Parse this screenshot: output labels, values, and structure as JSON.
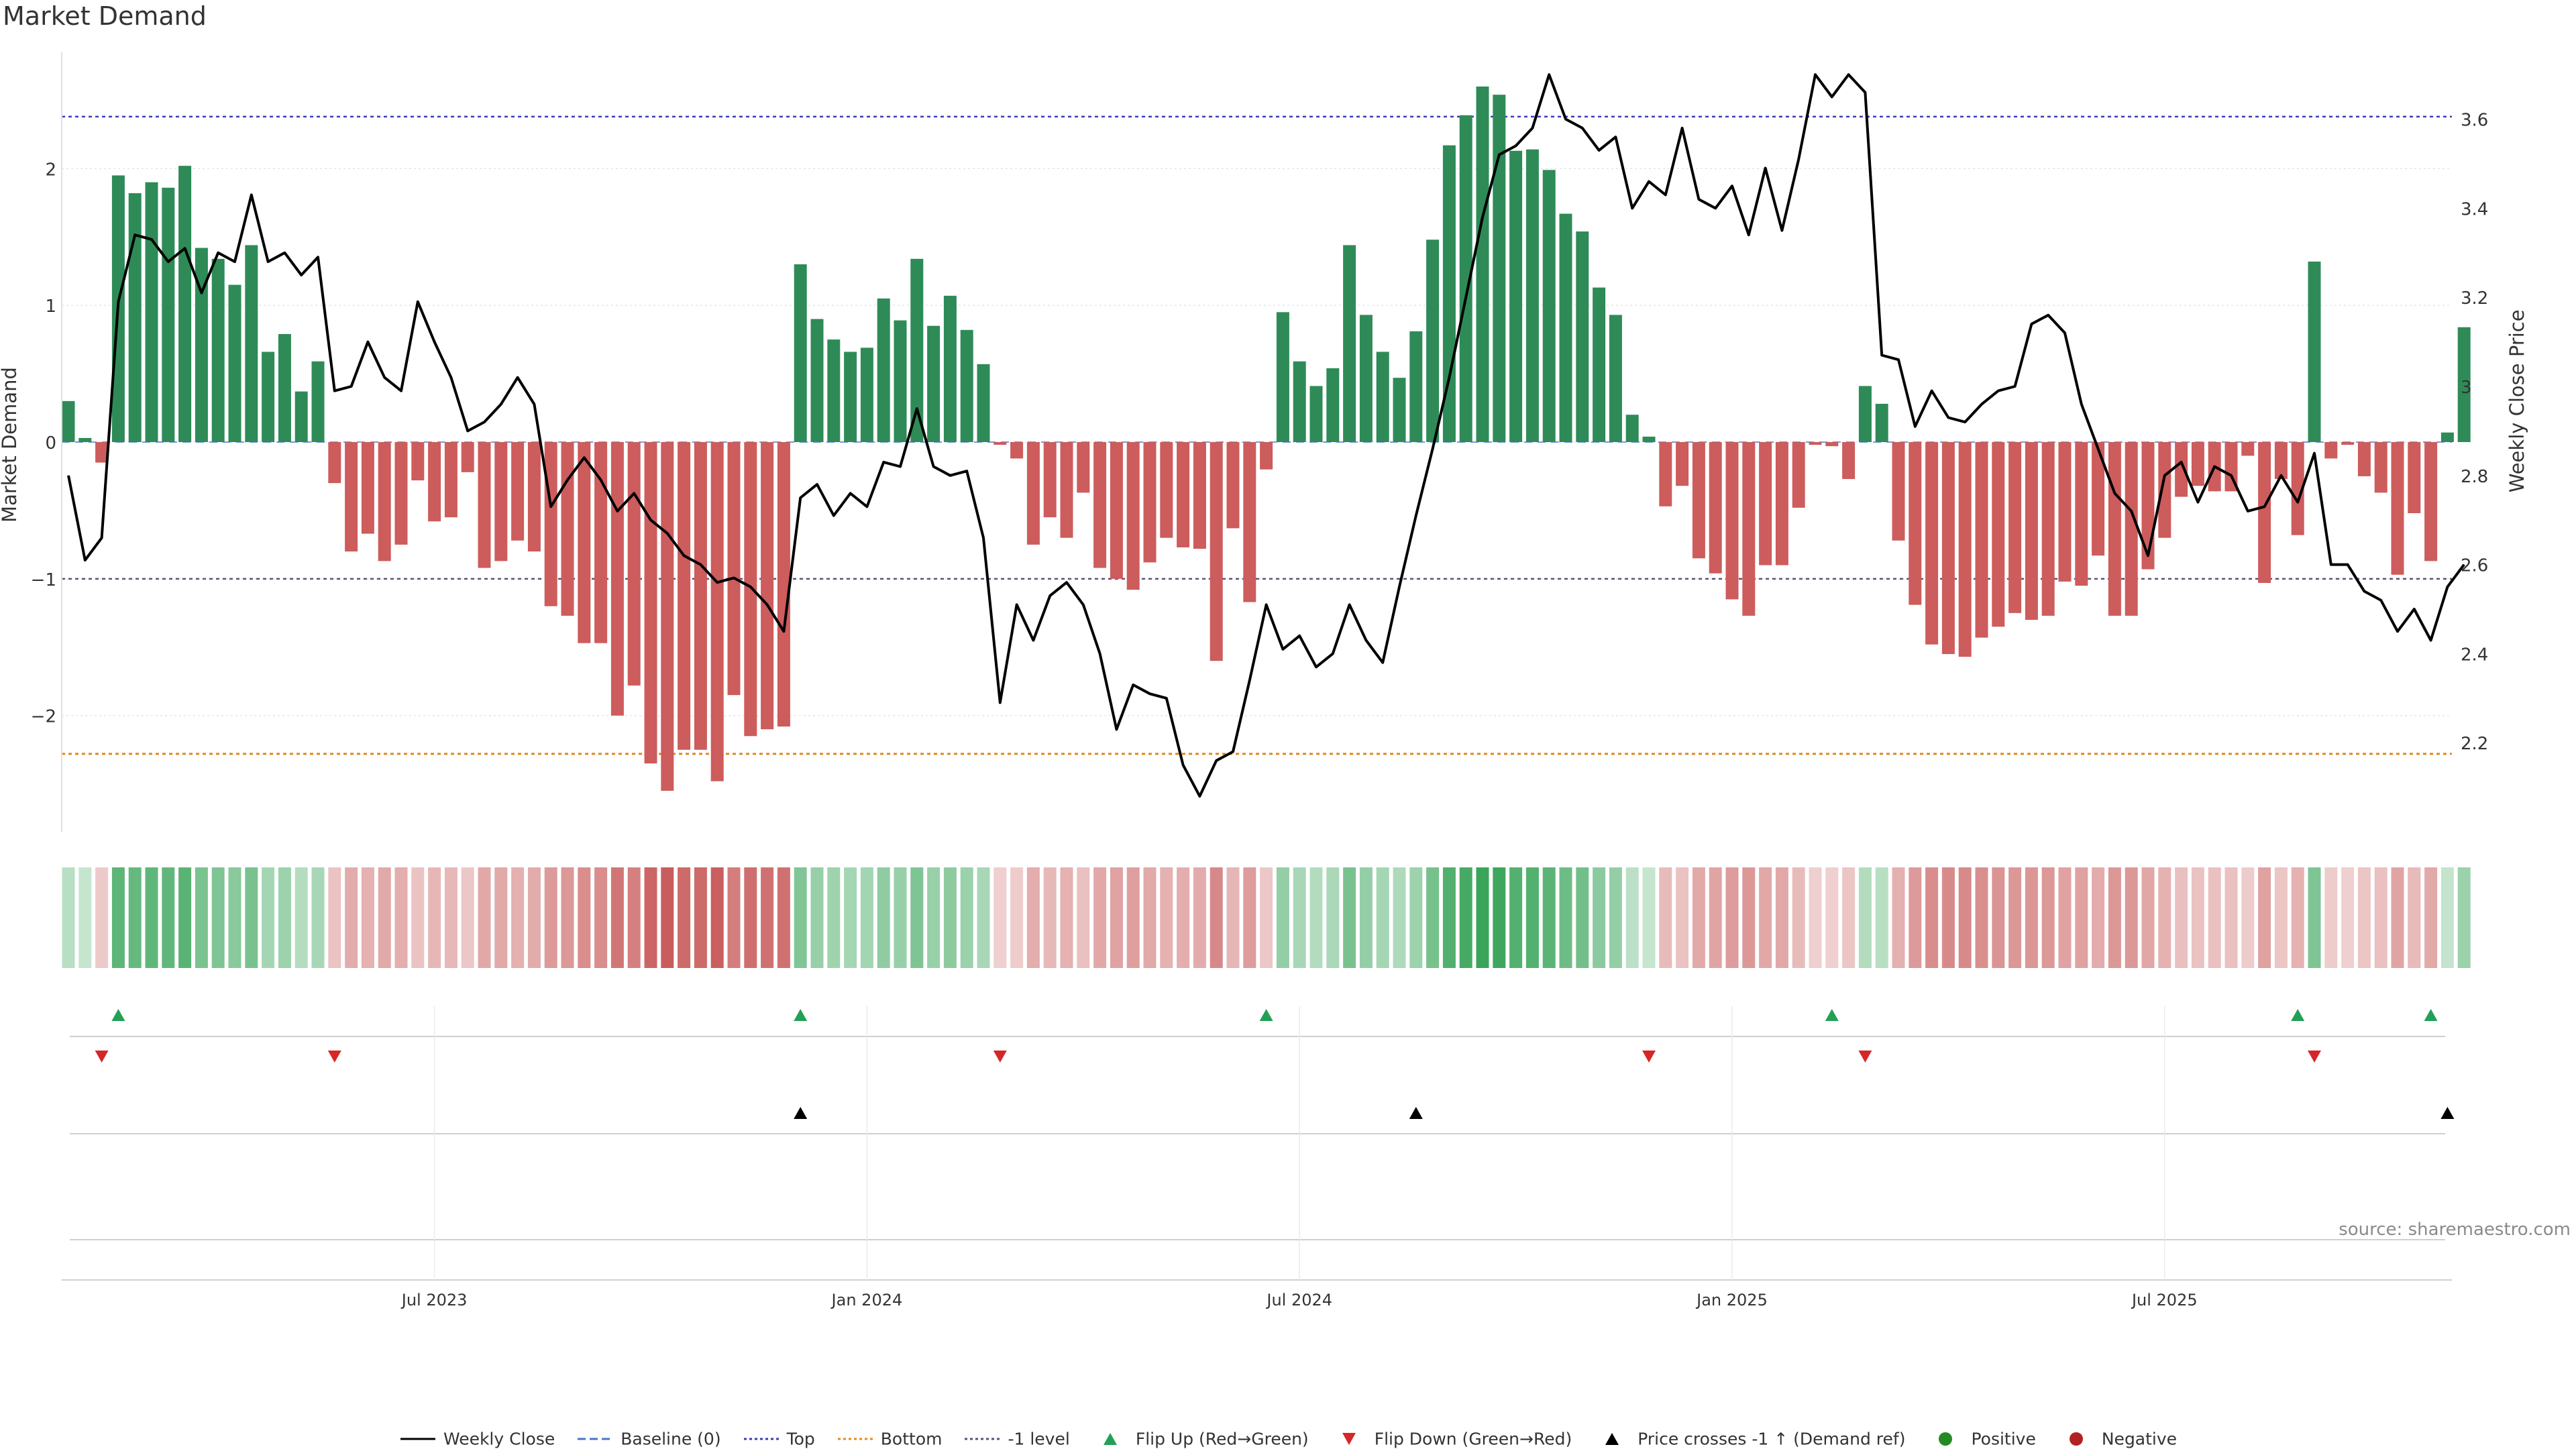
{
  "title": "Market Demand",
  "source": "source: sharemaestro.com",
  "colors": {
    "positive": "#2e8b57",
    "negative": "#cd5c5c",
    "top": "#3b3bb8",
    "bottom": "#e08a1e",
    "minus_one": "#555577",
    "price": "#000000",
    "flip_up": "#22a055",
    "flip_down": "#d62728",
    "cross": "#000000",
    "pos_dot": "#228b22",
    "neg_dot": "#b22222"
  },
  "legend": [
    {
      "label": "Weekly Close",
      "icon": "line-solid-icon",
      "color": "#000000"
    },
    {
      "label": "Baseline (0)",
      "icon": "line-dashed-icon",
      "color": "#4477cc"
    },
    {
      "label": "Top",
      "icon": "line-dotted-icon",
      "color": "#3b3bb8"
    },
    {
      "label": "Bottom",
      "icon": "line-dotted-icon",
      "color": "#e08a1e"
    },
    {
      "label": "-1 level",
      "icon": "line-dotted-icon",
      "color": "#555577"
    },
    {
      "label": "Flip Up (Red→Green)",
      "icon": "triangle-up-icon",
      "color": "#22a055"
    },
    {
      "label": "Flip Down (Green→Red)",
      "icon": "triangle-down-icon",
      "color": "#d62728"
    },
    {
      "label": "Price crosses -1 ↑ (Demand ref)",
      "icon": "triangle-up-icon",
      "color": "#000000"
    },
    {
      "label": "Positive",
      "icon": "circle-icon",
      "color": "#228b22"
    },
    {
      "label": "Negative",
      "icon": "circle-icon",
      "color": "#b22222"
    }
  ],
  "chart_data": {
    "type": "bar",
    "title": "Market Demand",
    "ylabel": "Market Demand",
    "y2label": "Weekly Close Price",
    "ylim": [
      -2.85,
      2.85
    ],
    "y2lim": [
      2.0,
      3.75
    ],
    "yticks": [
      -2,
      -1,
      0,
      1,
      2
    ],
    "ytick_labels": [
      "−2",
      "−1",
      "0",
      "1",
      "2"
    ],
    "y2ticks": [
      2.2,
      2.4,
      2.6,
      2.8,
      3.0,
      3.2,
      3.4,
      3.6
    ],
    "y2tick_labels": [
      "2.2",
      "2.4",
      "2.6",
      "2.8",
      "3",
      "3.2",
      "3.4",
      "3.6"
    ],
    "levels": {
      "top": 2.38,
      "bottom": -2.28,
      "minus_one": -1.0,
      "baseline": 0
    },
    "x_ticks": [
      {
        "label": "Jul 2023",
        "week": 22
      },
      {
        "label": "Jan 2024",
        "week": 48
      },
      {
        "label": "Jul 2024",
        "week": 74
      },
      {
        "label": "Jan 2025",
        "week": 100
      },
      {
        "label": "Jul 2025",
        "week": 126
      }
    ],
    "demand": [
      0.3,
      0.03,
      -0.15,
      1.95,
      1.82,
      1.9,
      1.86,
      2.02,
      1.42,
      1.34,
      1.15,
      1.44,
      0.66,
      0.79,
      0.37,
      0.59,
      -0.3,
      -0.8,
      -0.67,
      -0.87,
      -0.75,
      -0.28,
      -0.58,
      -0.55,
      -0.22,
      -0.92,
      -0.87,
      -0.72,
      -0.8,
      -1.2,
      -1.27,
      -1.47,
      -1.47,
      -2.0,
      -1.78,
      -2.35,
      -2.55,
      -2.25,
      -2.25,
      -2.48,
      -1.85,
      -2.15,
      -2.1,
      -2.08,
      1.3,
      0.9,
      0.75,
      0.66,
      0.69,
      1.05,
      0.89,
      1.34,
      0.85,
      1.07,
      0.82,
      0.57,
      -0.02,
      -0.12,
      -0.75,
      -0.55,
      -0.7,
      -0.37,
      -0.92,
      -1.0,
      -1.08,
      -0.88,
      -0.7,
      -0.77,
      -0.78,
      -1.6,
      -0.63,
      -1.17,
      -0.2,
      0.95,
      0.59,
      0.41,
      0.54,
      1.44,
      0.93,
      0.66,
      0.47,
      0.81,
      1.48,
      2.17,
      2.39,
      2.6,
      2.54,
      2.13,
      2.14,
      1.99,
      1.67,
      1.54,
      1.13,
      0.93,
      0.2,
      0.04,
      -0.47,
      -0.32,
      -0.85,
      -0.96,
      -1.15,
      -1.27,
      -0.9,
      -0.9,
      -0.48,
      -0.02,
      -0.03,
      -0.27,
      0.41,
      0.28,
      -0.72,
      -1.19,
      -1.48,
      -1.55,
      -1.57,
      -1.43,
      -1.35,
      -1.25,
      -1.3,
      -1.27,
      -1.02,
      -1.05,
      -0.83,
      -1.27,
      -1.27,
      -0.93,
      -0.7,
      -0.4,
      -0.32,
      -0.36,
      -0.36,
      -0.1,
      -1.03,
      -0.27,
      -0.68,
      1.32,
      -0.12,
      -0.02,
      -0.25,
      -0.37,
      -0.97,
      -0.52,
      -0.87,
      0.07,
      0.84
    ],
    "price": [
      2.8,
      2.61,
      2.66,
      3.19,
      3.34,
      3.33,
      3.28,
      3.31,
      3.21,
      3.3,
      3.28,
      3.43,
      3.28,
      3.3,
      3.25,
      3.29,
      2.99,
      3.0,
      3.1,
      3.02,
      2.99,
      3.19,
      3.1,
      3.02,
      2.9,
      2.92,
      2.96,
      3.02,
      2.96,
      2.73,
      2.79,
      2.84,
      2.79,
      2.72,
      2.76,
      2.7,
      2.67,
      2.62,
      2.6,
      2.56,
      2.57,
      2.55,
      2.51,
      2.45,
      2.75,
      2.78,
      2.71,
      2.76,
      2.73,
      2.83,
      2.82,
      2.95,
      2.82,
      2.8,
      2.81,
      2.66,
      2.29,
      2.51,
      2.43,
      2.53,
      2.56,
      2.51,
      2.4,
      2.23,
      2.33,
      2.31,
      2.3,
      2.15,
      2.08,
      2.16,
      2.18,
      2.34,
      2.51,
      2.41,
      2.44,
      2.37,
      2.4,
      2.51,
      2.43,
      2.38,
      2.55,
      2.71,
      2.86,
      3.02,
      3.2,
      3.38,
      3.52,
      3.54,
      3.58,
      3.7,
      3.6,
      3.58,
      3.53,
      3.56,
      3.4,
      3.46,
      3.43,
      3.58,
      3.42,
      3.4,
      3.45,
      3.34,
      3.49,
      3.35,
      3.51,
      3.7,
      3.65,
      3.7,
      3.66,
      3.07,
      3.06,
      2.91,
      2.99,
      2.93,
      2.92,
      2.96,
      2.99,
      3.0,
      3.14,
      3.16,
      3.12,
      2.96,
      2.86,
      2.76,
      2.72,
      2.62,
      2.8,
      2.83,
      2.74,
      2.82,
      2.8,
      2.72,
      2.73,
      2.8,
      2.74,
      2.85,
      2.6,
      2.6,
      2.54,
      2.52,
      2.45,
      2.5,
      2.43,
      2.55,
      2.6
    ],
    "flip_up_weeks": [
      3,
      44,
      72,
      106,
      134,
      142
    ],
    "flip_down_weeks": [
      2,
      16,
      56,
      95,
      108,
      135
    ],
    "price_cross_weeks": [
      44,
      81,
      143
    ]
  }
}
